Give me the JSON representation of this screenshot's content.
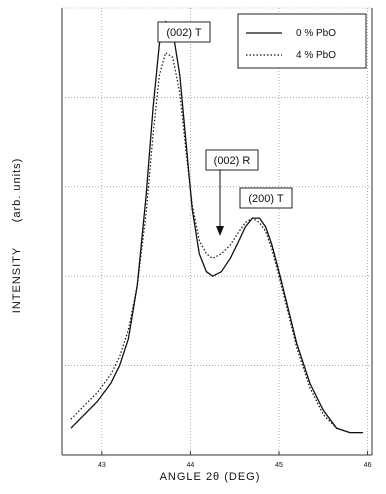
{
  "chart_data": {
    "type": "line",
    "ylabel_main": "INTENSITY",
    "ylabel_units": "(arb. units)",
    "xlabel": "ANGLE 2θ (DEG)",
    "xlim": [
      42.55,
      46.05
    ],
    "ylim": [
      0,
      1
    ],
    "x_ticks": [
      43,
      44,
      45,
      46
    ],
    "x_tick_labels": [
      "43",
      "44",
      "45",
      "46"
    ],
    "grid": true,
    "legend_position": "top-right",
    "series": [
      {
        "name": "0 % PbO",
        "style": "solid",
        "x": [
          42.65,
          42.8,
          42.95,
          43.1,
          43.2,
          43.3,
          43.4,
          43.5,
          43.58,
          43.65,
          43.72,
          43.8,
          43.88,
          43.95,
          44.02,
          44.1,
          44.18,
          44.25,
          44.35,
          44.45,
          44.55,
          44.62,
          44.7,
          44.78,
          44.85,
          44.92,
          45.0,
          45.1,
          45.2,
          45.35,
          45.5,
          45.65,
          45.8,
          45.95
        ],
        "y": [
          0.06,
          0.09,
          0.12,
          0.16,
          0.2,
          0.26,
          0.38,
          0.58,
          0.78,
          0.92,
          0.97,
          0.95,
          0.85,
          0.7,
          0.55,
          0.45,
          0.41,
          0.4,
          0.41,
          0.44,
          0.48,
          0.51,
          0.53,
          0.53,
          0.51,
          0.47,
          0.41,
          0.33,
          0.25,
          0.16,
          0.1,
          0.06,
          0.05,
          0.05
        ]
      },
      {
        "name": "4 % PbO",
        "style": "dotted",
        "x": [
          42.65,
          42.8,
          42.95,
          43.1,
          43.2,
          43.3,
          43.4,
          43.5,
          43.58,
          43.65,
          43.72,
          43.8,
          43.88,
          43.95,
          44.02,
          44.1,
          44.18,
          44.25,
          44.35,
          44.45,
          44.55,
          44.62,
          44.7,
          44.78,
          44.85,
          44.92,
          45.0,
          45.1,
          45.2,
          45.35,
          45.5,
          45.65,
          45.8,
          45.95
        ],
        "y": [
          0.08,
          0.11,
          0.14,
          0.18,
          0.22,
          0.28,
          0.38,
          0.54,
          0.72,
          0.85,
          0.9,
          0.89,
          0.81,
          0.68,
          0.56,
          0.48,
          0.45,
          0.44,
          0.45,
          0.47,
          0.5,
          0.52,
          0.53,
          0.52,
          0.5,
          0.46,
          0.4,
          0.32,
          0.24,
          0.15,
          0.09,
          0.06,
          0.05,
          0.05
        ]
      }
    ],
    "annotations": [
      {
        "text": "(002) T",
        "x": 43.72,
        "y": 0.97
      },
      {
        "text": "(002) R",
        "x": 44.25,
        "y": 0.41,
        "arrow": true
      },
      {
        "text": "(200) T",
        "x": 44.78,
        "y": 0.53
      }
    ]
  }
}
